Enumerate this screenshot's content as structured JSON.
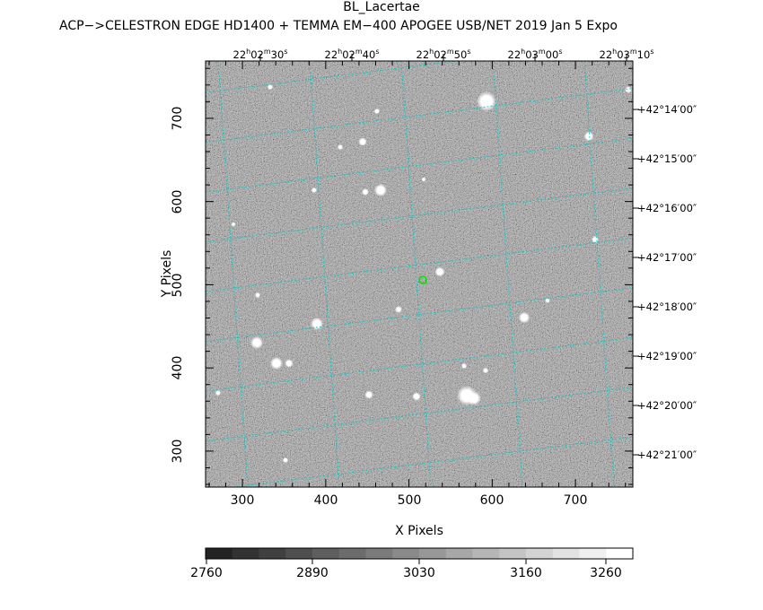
{
  "title": "BL_Lacertae",
  "subtitle": "ACP−>CELESTRON EDGE HD1400 + TEMMA EM−400 APOGEE USB/NET   2019 Jan  5    Expo",
  "x_axis_label": "X Pixels",
  "y_axis_label": "Y Pixels",
  "x_ticks": [
    "300",
    "400",
    "500",
    "600",
    "700"
  ],
  "y_ticks": [
    "300",
    "400",
    "500",
    "600",
    "700"
  ],
  "ra_labels": [
    {
      "h": "22",
      "m": "02",
      "s": "30"
    },
    {
      "h": "22",
      "m": "02",
      "s": "40"
    },
    {
      "h": "22",
      "m": "02",
      "s": "50"
    },
    {
      "h": "22",
      "m": "03",
      "s": "00"
    },
    {
      "h": "22",
      "m": "03",
      "s": "10"
    }
  ],
  "dec_labels": [
    "+42°14′00″",
    "+42°15′00″",
    "+42°16′00″",
    "+42°17′00″",
    "+42°18′00″",
    "+42°19′00″",
    "+42°20′00″",
    "+42°21′00″"
  ],
  "colorbar_ticks": [
    "2760",
    "2890",
    "3030",
    "3160",
    "3260"
  ],
  "colors": {
    "background_sky": "#8f8f8f",
    "grid_lines": "#00c8c8",
    "target_marker": "#00e000"
  }
}
